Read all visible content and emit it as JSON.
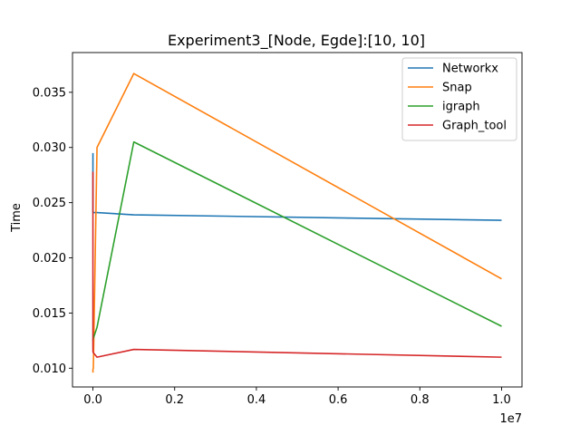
{
  "chart_data": {
    "type": "line",
    "title": "Experiment3_[Node, Egde]:[10, 10]",
    "xlabel": "",
    "ylabel": "Time",
    "x_offset_label": "1e7",
    "x_scale": 10000000,
    "xlim": [
      -500000,
      10500000
    ],
    "ylim": [
      0.0083,
      0.0386
    ],
    "xticks": [
      0,
      2000000,
      4000000,
      6000000,
      8000000,
      10000000
    ],
    "xtick_labels": [
      "0.0",
      "0.2",
      "0.4",
      "0.6",
      "0.8",
      "1.0"
    ],
    "yticks": [
      0.01,
      0.015,
      0.02,
      0.025,
      0.03,
      0.035
    ],
    "ytick_labels": [
      "0.010",
      "0.015",
      "0.020",
      "0.025",
      "0.030",
      "0.035"
    ],
    "grid": false,
    "legend_position": "top-right",
    "series": [
      {
        "name": "Networkx",
        "color": "#1f77b4",
        "x": [
          10,
          100,
          1000,
          10000,
          100000,
          1000000,
          10000000
        ],
        "y": [
          0.0295,
          0.0242,
          0.0241,
          0.0241,
          0.0241,
          0.0239,
          0.0234
        ]
      },
      {
        "name": "Snap",
        "color": "#ff7f0e",
        "x": [
          10,
          100,
          1000,
          10000,
          100000,
          1000000,
          10000000
        ],
        "y": [
          0.0096,
          0.0096,
          0.0099,
          0.01,
          0.03,
          0.0367,
          0.0181
        ]
      },
      {
        "name": "igraph",
        "color": "#2ca02c",
        "x": [
          10,
          100,
          1000,
          10000,
          100000,
          1000000,
          10000000
        ],
        "y": [
          0.0125,
          0.0125,
          0.0126,
          0.0127,
          0.0137,
          0.0305,
          0.0138
        ]
      },
      {
        "name": "Graph_tool",
        "color": "#d62728",
        "x": [
          10,
          100,
          1000,
          10000,
          100000,
          1000000,
          10000000
        ],
        "y": [
          0.0278,
          0.012,
          0.0115,
          0.0114,
          0.011,
          0.0117,
          0.011
        ]
      }
    ]
  }
}
